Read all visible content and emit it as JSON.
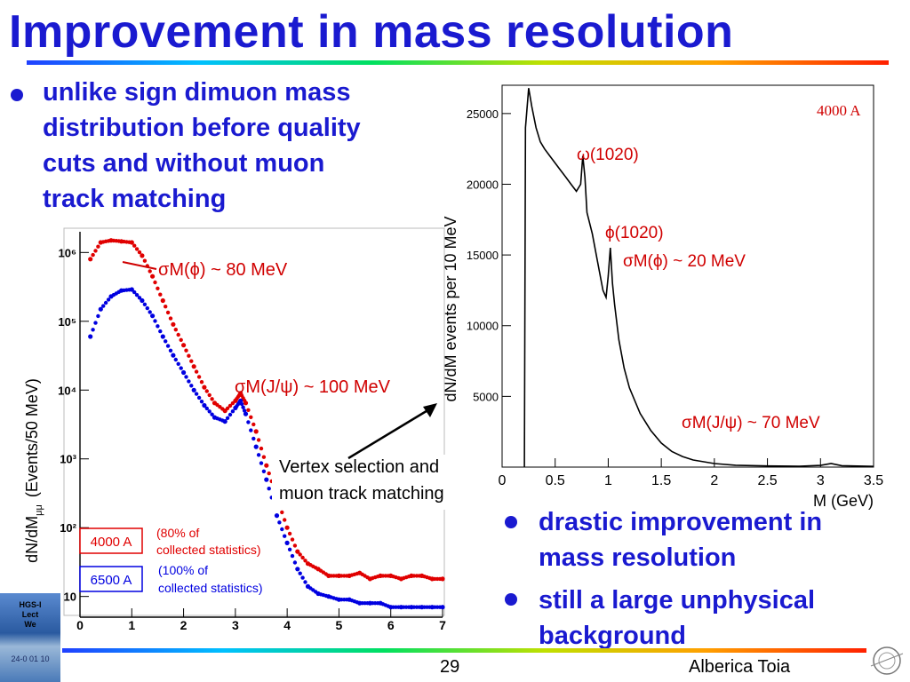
{
  "title": "Improvement in mass resolution",
  "bullet_left": [
    "unlike sign dimuon mass",
    "distribution before quality",
    "cuts and without muon",
    "track matching"
  ],
  "bullets_right": [
    [
      "drastic improvement in",
      "mass resolution"
    ],
    [
      "still a large unphysical",
      "background"
    ]
  ],
  "footer": {
    "page": "29",
    "author": "Alberica Toia",
    "sidebar_text": [
      "HGS-I",
      "Lect",
      "We"
    ],
    "sidebar_date": "24-0 01 10"
  },
  "colors": {
    "title": "#1a1ad0",
    "red": "#e00000",
    "blue": "#0000e0"
  },
  "left_plot": {
    "ylabel": "dN/dM",
    "ylabel_sub": "μμ",
    "ylabel_units": "(Events/50 MeV)",
    "xticks": [
      "0",
      "1",
      "2",
      "3",
      "4",
      "5",
      "6",
      "7"
    ],
    "yticks": [
      "10",
      "10²",
      "10³",
      "10⁴",
      "10⁵",
      "10⁶"
    ],
    "ann_phi": "σM(ϕ) ~ 80 MeV",
    "ann_jpsi": "σM(J/ψ) ~ 100 MeV",
    "vertex_text": [
      "Vertex selection and",
      "muon track matching"
    ],
    "legend": [
      {
        "label": "4000 A",
        "note": [
          "(80% of",
          "collected statistics)"
        ],
        "color": "#e00000"
      },
      {
        "label": "6500 A",
        "note": [
          "(100% of",
          "collected statistics)"
        ],
        "color": "#0000e0"
      }
    ]
  },
  "right_plot": {
    "ylabel": "dN/dM events per 10 MeV",
    "xlabel": "M (GeV)",
    "xticks": [
      "0",
      "0.5",
      "1",
      "1.5",
      "2",
      "2.5",
      "3",
      "3.5"
    ],
    "yticks": [
      "5000",
      "10000",
      "15000",
      "20000",
      "25000"
    ],
    "label_4000": "4000 A",
    "ann_omega": "ω(1020)",
    "ann_phi": "ϕ(1020)",
    "ann_sigma_phi": "σM(ϕ) ~ 20 MeV",
    "ann_sigma_jpsi": "σM(J/ψ) ~ 70 MeV"
  },
  "chart_data": [
    {
      "type": "scatter",
      "xlabel": "",
      "ylabel": "dN/dMμμ (Events/50 MeV)",
      "yscale": "log",
      "xlim": [
        0,
        7
      ],
      "ylim": [
        5,
        2000000
      ],
      "series": [
        {
          "name": "4000 A",
          "color": "#e00000",
          "x": [
            0.2,
            0.4,
            0.6,
            0.8,
            1.0,
            1.2,
            1.4,
            1.6,
            1.8,
            2.0,
            2.2,
            2.4,
            2.6,
            2.8,
            3.0,
            3.1,
            3.2,
            3.4,
            3.6,
            3.8,
            4.0,
            4.2,
            4.4,
            4.6,
            4.8,
            5.0,
            5.2,
            5.4,
            5.6,
            5.8,
            6.0,
            6.2,
            6.4,
            6.6,
            6.8,
            7.0
          ],
          "y": [
            800000,
            1400000,
            1500000,
            1450000,
            1400000,
            900000,
            450000,
            200000,
            90000,
            45000,
            22000,
            11000,
            6500,
            5000,
            7000,
            9000,
            6500,
            2500,
            800,
            280,
            100,
            45,
            30,
            25,
            20,
            20,
            20,
            22,
            18,
            20,
            20,
            18,
            20,
            20,
            18,
            18
          ]
        },
        {
          "name": "6500 A",
          "color": "#0000e0",
          "x": [
            0.2,
            0.4,
            0.6,
            0.8,
            1.0,
            1.2,
            1.4,
            1.6,
            1.8,
            2.0,
            2.2,
            2.4,
            2.6,
            2.8,
            3.0,
            3.1,
            3.2,
            3.4,
            3.6,
            3.8,
            4.0,
            4.2,
            4.4,
            4.6,
            4.8,
            5.0,
            5.2,
            5.4,
            5.6,
            5.8,
            6.0,
            6.2,
            6.4,
            6.6,
            6.8,
            7.0
          ],
          "y": [
            60000,
            150000,
            230000,
            280000,
            290000,
            200000,
            120000,
            60000,
            32000,
            18000,
            10000,
            6000,
            4000,
            3500,
            5500,
            7000,
            4500,
            1500,
            500,
            150,
            60,
            25,
            14,
            11,
            10,
            9,
            9,
            8,
            8,
            8,
            7,
            7,
            7,
            7,
            7,
            7
          ]
        }
      ]
    },
    {
      "type": "line",
      "xlabel": "M (GeV)",
      "ylabel": "dN/dM events per 10 MeV",
      "xlim": [
        0,
        3.5
      ],
      "ylim": [
        0,
        27000
      ],
      "series": [
        {
          "name": "4000 A",
          "color": "#000000",
          "x": [
            0.21,
            0.22,
            0.25,
            0.28,
            0.32,
            0.36,
            0.4,
            0.45,
            0.5,
            0.55,
            0.6,
            0.65,
            0.7,
            0.74,
            0.76,
            0.78,
            0.8,
            0.85,
            0.9,
            0.95,
            0.98,
            1.0,
            1.02,
            1.04,
            1.06,
            1.1,
            1.15,
            1.2,
            1.3,
            1.4,
            1.5,
            1.6,
            1.7,
            1.8,
            2.0,
            2.2,
            2.5,
            2.8,
            3.0,
            3.1,
            3.2,
            3.5
          ],
          "y": [
            0,
            24000,
            26800,
            25500,
            24000,
            23000,
            22500,
            22000,
            21500,
            21000,
            20500,
            20000,
            19500,
            20000,
            22000,
            20500,
            18000,
            16500,
            14500,
            12500,
            12000,
            13500,
            15500,
            13000,
            11500,
            9000,
            7000,
            5600,
            3800,
            2600,
            1700,
            1100,
            750,
            500,
            250,
            130,
            80,
            60,
            120,
            250,
            100,
            50
          ]
        }
      ]
    }
  ]
}
